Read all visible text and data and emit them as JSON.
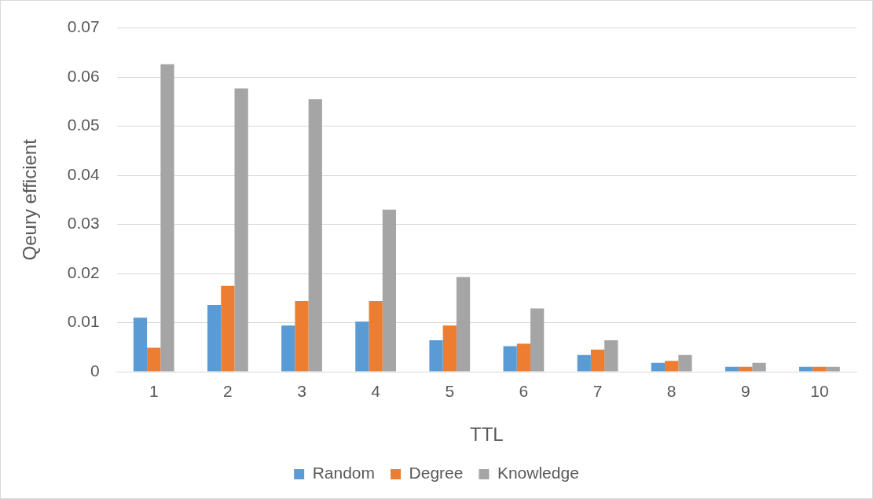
{
  "chart_data": {
    "type": "bar",
    "xlabel": "TTL",
    "ylabel": "Qeury efficient",
    "categories": [
      "1",
      "2",
      "3",
      "4",
      "5",
      "6",
      "7",
      "8",
      "9",
      "10"
    ],
    "series": [
      {
        "name": "Random",
        "color": "#5b9bd5",
        "values": [
          0.011,
          0.0136,
          0.0094,
          0.0102,
          0.0064,
          0.0052,
          0.0034,
          0.0018,
          0.001,
          0.001
        ]
      },
      {
        "name": "Degree",
        "color": "#ed7d31",
        "values": [
          0.0049,
          0.0175,
          0.0144,
          0.0144,
          0.0094,
          0.0057,
          0.0045,
          0.0022,
          0.001,
          0.001
        ]
      },
      {
        "name": "Knowledge",
        "color": "#a5a5a5",
        "values": [
          0.0626,
          0.0577,
          0.0555,
          0.033,
          0.0193,
          0.0129,
          0.0064,
          0.0034,
          0.0018,
          0.001
        ]
      }
    ],
    "ylim": [
      0,
      0.07
    ],
    "yticks": [
      0,
      0.01,
      0.02,
      0.03,
      0.04,
      0.05,
      0.06,
      0.07
    ],
    "grid": "y",
    "legend": "bottom"
  }
}
